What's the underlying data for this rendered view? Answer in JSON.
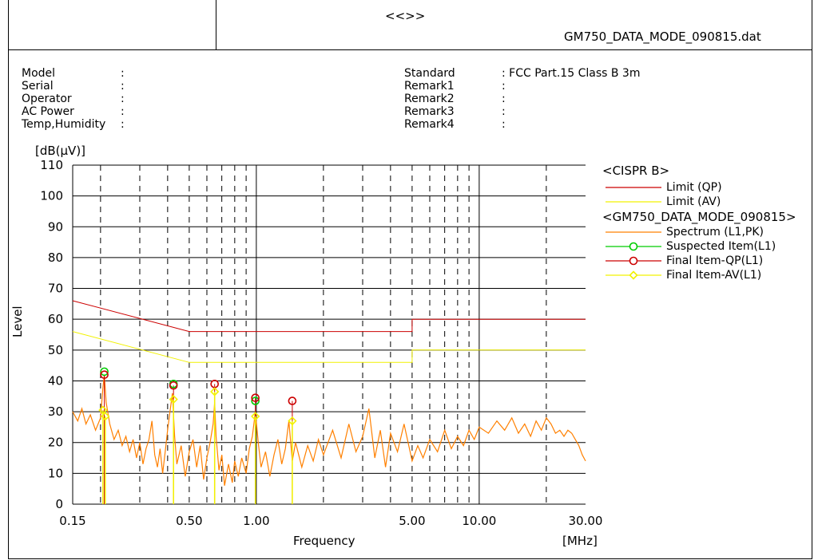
{
  "header": {
    "center_title": "<<>>",
    "filename": "GM750_DATA_MODE_090815.dat"
  },
  "info": {
    "left": [
      {
        "label": "Model",
        "value": ":"
      },
      {
        "label": "Serial",
        "value": ":"
      },
      {
        "label": "Operator",
        "value": ":"
      },
      {
        "label": "AC Power",
        "value": ":"
      },
      {
        "label": "Temp,Humidity",
        "value": ":"
      }
    ],
    "right": [
      {
        "label": "Standard",
        "value": ": FCC Part.15 Class B 3m"
      },
      {
        "label": "Remark1",
        "value": ":"
      },
      {
        "label": "Remark2",
        "value": ":"
      },
      {
        "label": "Remark3",
        "value": ":"
      },
      {
        "label": "Remark4",
        "value": ":"
      }
    ]
  },
  "legend": {
    "group1": "<CISPR B>",
    "group2": "<GM750_DATA_MODE_090815>",
    "items": [
      {
        "label": "Limit (QP)",
        "color": "#cc0000",
        "marker": "none"
      },
      {
        "label": "Limit (AV)",
        "color": "#f2f200",
        "marker": "none"
      },
      {
        "label": "Spectrum (L1,PK)",
        "color": "#ff8000",
        "marker": "none"
      },
      {
        "label": "Suspected Item(L1)",
        "color": "#00cc00",
        "marker": "circle"
      },
      {
        "label": "Final Item-QP(L1)",
        "color": "#cc0000",
        "marker": "circle"
      },
      {
        "label": "Final Item-AV(L1)",
        "color": "#f2f200",
        "marker": "diamond"
      }
    ]
  },
  "chart_data": {
    "type": "line",
    "xlabel": "Frequency",
    "ylabel": "Level",
    "yunit": "[dB(μV)]",
    "xunit": "[MHz]",
    "xscale": "log",
    "xlim": [
      0.15,
      30.0
    ],
    "ylim": [
      0,
      110
    ],
    "yticks": [
      0,
      10,
      20,
      30,
      40,
      50,
      60,
      70,
      80,
      90,
      100,
      110
    ],
    "xtick_labels": [
      {
        "value": 0.15,
        "label": "0.15"
      },
      {
        "value": 0.5,
        "label": "0.50"
      },
      {
        "value": 1.0,
        "label": "1.00"
      },
      {
        "value": 5.0,
        "label": "5.00"
      },
      {
        "value": 10.0,
        "label": "10.00"
      },
      {
        "value": 30.0,
        "label": "30.00"
      }
    ],
    "major_grid_x": [
      1.0,
      10.0
    ],
    "minor_grid_x": [
      0.2,
      0.3,
      0.4,
      0.5,
      0.6,
      0.7,
      0.8,
      0.9,
      2,
      3,
      4,
      5,
      6,
      7,
      8,
      9,
      20
    ],
    "limit_qp": [
      [
        0.15,
        66
      ],
      [
        0.5,
        56
      ],
      [
        5.0,
        56
      ],
      [
        5.0,
        60
      ],
      [
        30.0,
        60
      ]
    ],
    "limit_av": [
      [
        0.15,
        56
      ],
      [
        0.5,
        46
      ],
      [
        5.0,
        46
      ],
      [
        5.0,
        50
      ],
      [
        30.0,
        50
      ]
    ],
    "spectrum_pk": [
      [
        0.15,
        30
      ],
      [
        0.158,
        27
      ],
      [
        0.165,
        31
      ],
      [
        0.172,
        26
      ],
      [
        0.18,
        29
      ],
      [
        0.19,
        24
      ],
      [
        0.2,
        28
      ],
      [
        0.205,
        38
      ],
      [
        0.208,
        42
      ],
      [
        0.212,
        33
      ],
      [
        0.22,
        26
      ],
      [
        0.23,
        21
      ],
      [
        0.24,
        24
      ],
      [
        0.25,
        19
      ],
      [
        0.26,
        22
      ],
      [
        0.27,
        17
      ],
      [
        0.28,
        21
      ],
      [
        0.29,
        15
      ],
      [
        0.3,
        20
      ],
      [
        0.31,
        13
      ],
      [
        0.32,
        18
      ],
      [
        0.33,
        21
      ],
      [
        0.34,
        27
      ],
      [
        0.35,
        16
      ],
      [
        0.36,
        12
      ],
      [
        0.37,
        18
      ],
      [
        0.38,
        10
      ],
      [
        0.39,
        17
      ],
      [
        0.4,
        24
      ],
      [
        0.41,
        30
      ],
      [
        0.42,
        36
      ],
      [
        0.43,
        22
      ],
      [
        0.44,
        13
      ],
      [
        0.46,
        19
      ],
      [
        0.48,
        9
      ],
      [
        0.5,
        17
      ],
      [
        0.52,
        21
      ],
      [
        0.54,
        12
      ],
      [
        0.56,
        19
      ],
      [
        0.58,
        8
      ],
      [
        0.6,
        15
      ],
      [
        0.62,
        20
      ],
      [
        0.64,
        26
      ],
      [
        0.65,
        33
      ],
      [
        0.66,
        22
      ],
      [
        0.68,
        11
      ],
      [
        0.7,
        16
      ],
      [
        0.72,
        6
      ],
      [
        0.75,
        13
      ],
      [
        0.78,
        7
      ],
      [
        0.8,
        14
      ],
      [
        0.83,
        9
      ],
      [
        0.86,
        15
      ],
      [
        0.9,
        10
      ],
      [
        0.93,
        18
      ],
      [
        0.96,
        22
      ],
      [
        0.99,
        30
      ],
      [
        1.02,
        20
      ],
      [
        1.05,
        12
      ],
      [
        1.1,
        17
      ],
      [
        1.15,
        9
      ],
      [
        1.2,
        16
      ],
      [
        1.25,
        21
      ],
      [
        1.3,
        13
      ],
      [
        1.35,
        18
      ],
      [
        1.4,
        27
      ],
      [
        1.45,
        14
      ],
      [
        1.5,
        20
      ],
      [
        1.6,
        12
      ],
      [
        1.7,
        19
      ],
      [
        1.8,
        14
      ],
      [
        1.9,
        21
      ],
      [
        2.0,
        16
      ],
      [
        2.2,
        24
      ],
      [
        2.4,
        15
      ],
      [
        2.6,
        26
      ],
      [
        2.8,
        17
      ],
      [
        3.0,
        22
      ],
      [
        3.2,
        31
      ],
      [
        3.4,
        15
      ],
      [
        3.6,
        24
      ],
      [
        3.8,
        12
      ],
      [
        4.0,
        23
      ],
      [
        4.3,
        17
      ],
      [
        4.6,
        26
      ],
      [
        5.0,
        14
      ],
      [
        5.3,
        19
      ],
      [
        5.6,
        15
      ],
      [
        6.0,
        21
      ],
      [
        6.5,
        17
      ],
      [
        7.0,
        24
      ],
      [
        7.5,
        18
      ],
      [
        8.0,
        22
      ],
      [
        8.5,
        19
      ],
      [
        9.0,
        24
      ],
      [
        9.5,
        21
      ],
      [
        10.0,
        25
      ],
      [
        11.0,
        23
      ],
      [
        12.0,
        27
      ],
      [
        13.0,
        24
      ],
      [
        14.0,
        28
      ],
      [
        15.0,
        23
      ],
      [
        16.0,
        26
      ],
      [
        17.0,
        22
      ],
      [
        18.0,
        27
      ],
      [
        19.0,
        24
      ],
      [
        20.0,
        28
      ],
      [
        21.0,
        26
      ],
      [
        22.0,
        23
      ],
      [
        23.0,
        24
      ],
      [
        24.0,
        22
      ],
      [
        25.0,
        24
      ],
      [
        26.0,
        23
      ],
      [
        27.0,
        21
      ],
      [
        28.0,
        19
      ],
      [
        29.0,
        16
      ],
      [
        30.0,
        14
      ]
    ],
    "suspected": [
      [
        0.208,
        43
      ],
      [
        0.425,
        39
      ],
      [
        0.99,
        33.5
      ]
    ],
    "final_qp": [
      [
        0.208,
        42
      ],
      [
        0.425,
        38.5
      ],
      [
        0.65,
        39
      ],
      [
        0.99,
        34.5
      ],
      [
        1.45,
        33.5
      ]
    ],
    "final_av": [
      [
        0.205,
        30.5
      ],
      [
        0.21,
        28.5
      ],
      [
        0.425,
        34
      ],
      [
        0.65,
        36.5
      ],
      [
        0.99,
        28.5
      ],
      [
        1.45,
        27
      ]
    ]
  }
}
